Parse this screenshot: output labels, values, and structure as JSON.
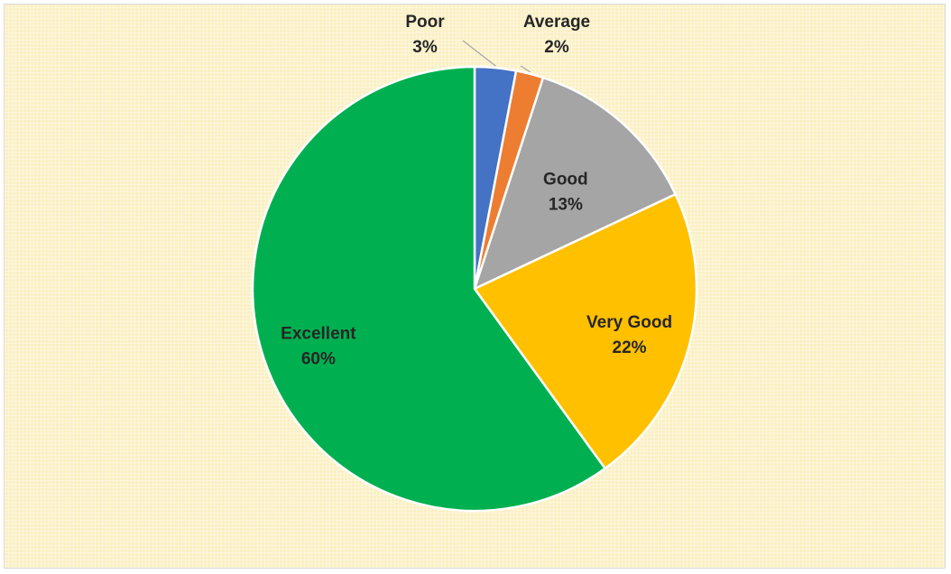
{
  "chart_data": {
    "type": "pie",
    "title": "",
    "slices": [
      {
        "label": "Poor",
        "value": 3,
        "value_label": "3%",
        "color": "#4472c4"
      },
      {
        "label": "Average",
        "value": 2,
        "value_label": "2%",
        "color": "#ed7d31"
      },
      {
        "label": "Good",
        "value": 13,
        "value_label": "13%",
        "color": "#a5a5a5"
      },
      {
        "label": "Very Good",
        "value": 22,
        "value_label": "22%",
        "color": "#ffc000"
      },
      {
        "label": "Excellent",
        "value": 60,
        "value_label": "60%",
        "color": "#00b050"
      }
    ],
    "start_angle_deg": 0,
    "direction": "clockwise",
    "legend": "none",
    "background": "#fbf0c4"
  }
}
